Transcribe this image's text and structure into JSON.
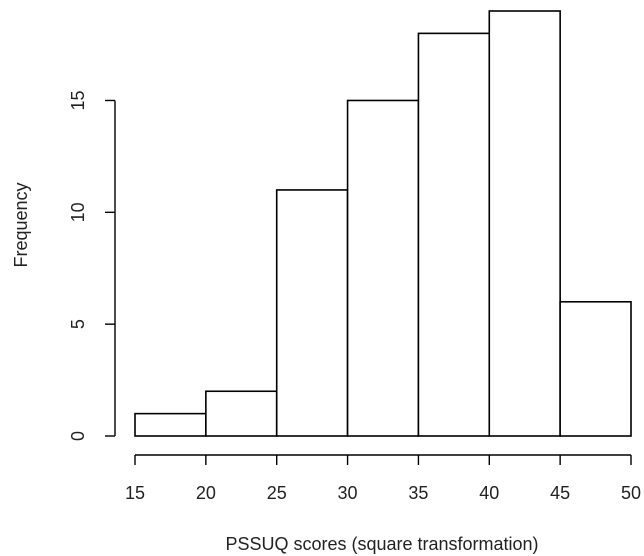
{
  "chart_data": {
    "type": "bar",
    "title": "",
    "xlabel": "PSSUQ scores (square transformation)",
    "ylabel": "Frequency",
    "bins": [
      {
        "x0": 15,
        "x1": 20,
        "count": 1
      },
      {
        "x0": 20,
        "x1": 25,
        "count": 2
      },
      {
        "x0": 25,
        "x1": 30,
        "count": 11
      },
      {
        "x0": 30,
        "x1": 35,
        "count": 15
      },
      {
        "x0": 35,
        "x1": 40,
        "count": 18
      },
      {
        "x0": 40,
        "x1": 45,
        "count": 19
      },
      {
        "x0": 45,
        "x1": 50,
        "count": 6
      }
    ],
    "x_ticks": [
      15,
      20,
      25,
      30,
      35,
      40,
      45,
      50
    ],
    "y_ticks": [
      0,
      5,
      10,
      15
    ],
    "xlim": [
      15,
      50
    ],
    "ylim": [
      0,
      19
    ],
    "grid": false,
    "bar_fill": "#ffffff",
    "bar_stroke": "#000000"
  }
}
